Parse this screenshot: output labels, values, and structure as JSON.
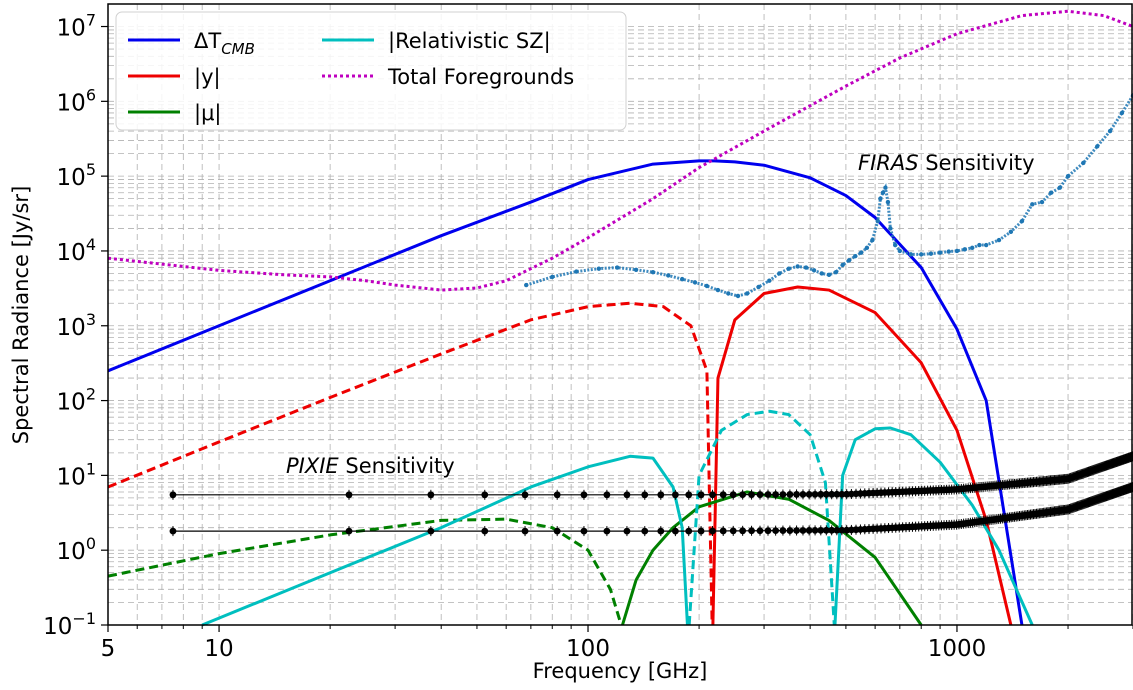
{
  "chart_data": {
    "type": "line",
    "xlabel": "Frequency [GHz]",
    "ylabel": "Spectral Radiance [Jy/sr]",
    "xscale": "log",
    "yscale": "log",
    "xlim": [
      5,
      3000
    ],
    "ylim": [
      0.1,
      20000000
    ],
    "grid": true,
    "legend_position": "top-left",
    "x_ticks": [
      {
        "value": 5,
        "label": "5"
      },
      {
        "value": 10,
        "label": "10"
      },
      {
        "value": 100,
        "label": "100"
      },
      {
        "value": 1000,
        "label": "1000"
      }
    ],
    "y_ticks": [
      {
        "value": 0.1,
        "base": "10",
        "exp": "−1"
      },
      {
        "value": 1,
        "base": "10",
        "exp": "0"
      },
      {
        "value": 10,
        "base": "10",
        "exp": "1"
      },
      {
        "value": 100,
        "base": "10",
        "exp": "2"
      },
      {
        "value": 1000,
        "base": "10",
        "exp": "3"
      },
      {
        "value": 10000,
        "base": "10",
        "exp": "4"
      },
      {
        "value": 100000,
        "base": "10",
        "exp": "5"
      },
      {
        "value": 1000000,
        "base": "10",
        "exp": "6"
      },
      {
        "value": 10000000,
        "base": "10",
        "exp": "7"
      }
    ],
    "legend": [
      {
        "key": "dT",
        "main": "ΔT",
        "sub": "CMB",
        "color": "#0000ee",
        "dash": "solid"
      },
      {
        "key": "y",
        "main": "|y|",
        "sub": "",
        "color": "#ee0000",
        "dash": "solid"
      },
      {
        "key": "mu",
        "main": "|μ|",
        "sub": "",
        "color": "#008000",
        "dash": "solid"
      },
      {
        "key": "rsz",
        "main": "|Relativistic SZ|",
        "sub": "",
        "color": "#00bfbf",
        "dash": "solid"
      },
      {
        "key": "fg",
        "main": "Total Foregrounds",
        "sub": "",
        "color": "#bf00bf",
        "dash": "dotted"
      }
    ],
    "annotations": {
      "firas": {
        "italic": "FIRAS",
        "rest": " Sensitivity"
      },
      "pixie": {
        "italic": "PIXIE",
        "rest": " Sensitivity"
      }
    },
    "series": [
      {
        "name": "ΔT_CMB",
        "color": "#0000ee",
        "style": "solid",
        "x": [
          5,
          10,
          20,
          40,
          70,
          100,
          150,
          200,
          220,
          250,
          300,
          400,
          500,
          600,
          800,
          1000,
          1200,
          1500
        ],
        "y": [
          250,
          1000,
          4000,
          16000,
          45000,
          90000,
          145000,
          160000,
          160000,
          155000,
          140000,
          95000,
          55000,
          28000,
          6000,
          900,
          100,
          0.1
        ]
      },
      {
        "name": "|y| (negative)",
        "color": "#ee0000",
        "style": "dashed",
        "x": [
          5,
          10,
          20,
          40,
          70,
          100,
          130,
          160,
          190,
          210,
          217
        ],
        "y": [
          7,
          28,
          110,
          420,
          1200,
          1800,
          2000,
          1800,
          1000,
          250,
          0.1
        ]
      },
      {
        "name": "|y| (positive)",
        "color": "#ee0000",
        "style": "solid",
        "x": [
          218,
          225,
          250,
          300,
          370,
          450,
          600,
          800,
          1000,
          1200,
          1400
        ],
        "y": [
          0.1,
          200,
          1200,
          2700,
          3300,
          3000,
          1500,
          320,
          40,
          2.5,
          0.1
        ]
      },
      {
        "name": "|μ| (negative)",
        "color": "#008000",
        "style": "dashed",
        "x": [
          5,
          10,
          20,
          40,
          60,
          80,
          100,
          115,
          123
        ],
        "y": [
          0.45,
          0.9,
          1.6,
          2.5,
          2.6,
          2.0,
          1.0,
          0.3,
          0.1
        ]
      },
      {
        "name": "|μ| (positive)",
        "color": "#008000",
        "style": "solid",
        "x": [
          124,
          135,
          150,
          170,
          200,
          270,
          350,
          450,
          600,
          800
        ],
        "y": [
          0.1,
          0.4,
          1.0,
          2.0,
          3.8,
          6.0,
          4.8,
          2.5,
          0.8,
          0.1
        ]
      },
      {
        "name": "|Relativistic SZ| 1",
        "color": "#00bfbf",
        "style": "solid",
        "x": [
          9,
          20,
          40,
          70,
          100,
          130,
          150,
          170,
          180,
          186
        ],
        "y": [
          0.1,
          0.5,
          2.0,
          7.0,
          13,
          18,
          17,
          7,
          2,
          0.1
        ]
      },
      {
        "name": "|Relativistic SZ| 2",
        "color": "#00bfbf",
        "style": "dashed",
        "x": [
          188,
          200,
          230,
          270,
          310,
          350,
          400,
          440,
          465
        ],
        "y": [
          0.1,
          10,
          40,
          65,
          72,
          65,
          35,
          8,
          0.1
        ]
      },
      {
        "name": "|Relativistic SZ| 3",
        "color": "#00bfbf",
        "style": "solid",
        "x": [
          467,
          490,
          530,
          600,
          660,
          750,
          900,
          1100,
          1300,
          1600
        ],
        "y": [
          0.1,
          10,
          30,
          42,
          43,
          35,
          15,
          4,
          1,
          0.1
        ]
      },
      {
        "name": "Total Foregrounds",
        "color": "#bf00bf",
        "style": "dotted",
        "x": [
          5,
          10,
          15,
          20,
          25,
          30,
          40,
          50,
          60,
          80,
          100,
          150,
          200,
          300,
          500,
          700,
          1000,
          1500,
          2000,
          2500,
          3000
        ],
        "y": [
          8000,
          5500,
          4800,
          4500,
          4000,
          3500,
          3000,
          3200,
          4000,
          8000,
          15000,
          50000,
          130000,
          400000,
          1600000,
          3800000,
          8000000,
          14000000,
          16000000,
          14000000,
          10000000
        ]
      },
      {
        "name": "FIRAS Sensitivity",
        "color": "#1f77b4",
        "style": "points",
        "x": [
          68,
          80,
          93,
          107,
          120,
          135,
          150,
          165,
          180,
          195,
          210,
          225,
          240,
          255,
          270,
          290,
          310,
          330,
          350,
          370,
          390,
          410,
          430,
          450,
          470,
          490,
          510,
          530,
          550,
          570,
          590,
          610,
          620,
          630,
          640,
          650,
          660,
          680,
          700,
          750,
          800,
          850,
          900,
          950,
          1000,
          1050,
          1100,
          1150,
          1200,
          1300,
          1400,
          1500,
          1600,
          1700,
          1800,
          1900,
          2000,
          2200,
          2400,
          2600,
          2800,
          3000
        ],
        "y": [
          3500,
          4500,
          5300,
          5800,
          6000,
          5600,
          5200,
          4700,
          4200,
          3800,
          3400,
          3000,
          2700,
          2500,
          2700,
          3300,
          4000,
          5000,
          5800,
          6200,
          6000,
          5500,
          5000,
          4800,
          5200,
          6500,
          7500,
          8500,
          9500,
          11000,
          14000,
          25000,
          50000,
          60000,
          70000,
          45000,
          20000,
          12000,
          10000,
          9000,
          9000,
          9200,
          9500,
          9800,
          10000,
          10500,
          11000,
          12000,
          12000,
          14000,
          18000,
          25000,
          42000,
          45000,
          60000,
          70000,
          100000,
          150000,
          250000,
          400000,
          700000,
          1200000
        ]
      },
      {
        "name": "PIXIE Sensitivity (upper)",
        "color": "#000000",
        "style": "errorbars",
        "x_start": 7.5,
        "x_end": 3000,
        "y": [
          5.5,
          5.5,
          5.6,
          6.5,
          9.0,
          18
        ],
        "y_at": [
          7.5,
          200,
          500,
          1000,
          2000,
          3000
        ]
      },
      {
        "name": "PIXIE Sensitivity (lower)",
        "color": "#000000",
        "style": "errorbars",
        "x_start": 7.5,
        "x_end": 3000,
        "y": [
          1.8,
          1.8,
          1.85,
          2.2,
          3.5,
          7.0
        ],
        "y_at": [
          7.5,
          200,
          500,
          1000,
          2000,
          3000
        ]
      }
    ]
  }
}
